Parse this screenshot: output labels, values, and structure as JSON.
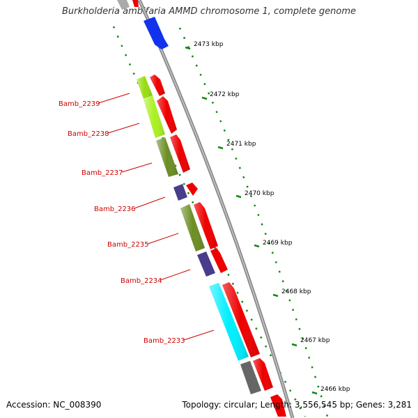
{
  "title": "Burkholderia ambifaria AMMD chromosome 1, complete genome",
  "footer": {
    "accession": "Accession: NC_008390",
    "summary": "Topology: circular; Length: 3,556,545 bp; Genes: 3,281"
  },
  "ticks": [
    "2473 kbp",
    "2472 kbp",
    "2471 kbp",
    "2470 kbp",
    "2469 kbp",
    "2468 kbp",
    "2467 kbp",
    "2466 kbp"
  ],
  "genes": [
    {
      "name": "Bamb_2239",
      "color": "#99dd11"
    },
    {
      "name": "Bamb_2238",
      "color": "#aaf022"
    },
    {
      "name": "Bamb_2237",
      "color": "#6b8e23"
    },
    {
      "name": "Bamb_2236",
      "color": "#483d8b"
    },
    {
      "name": "Bamb_2235",
      "color": "#6b8e23"
    },
    {
      "name": "Bamb_2234",
      "color": "#483d8b"
    },
    {
      "name": "Bamb_2233",
      "color": "#00eeff"
    }
  ],
  "colors": {
    "backbone": "#888888",
    "cds": "#ee0000",
    "tick": "#118811",
    "label": "#cc0000",
    "blue_feature": "#1133ee",
    "gray_feature": "#666666"
  }
}
